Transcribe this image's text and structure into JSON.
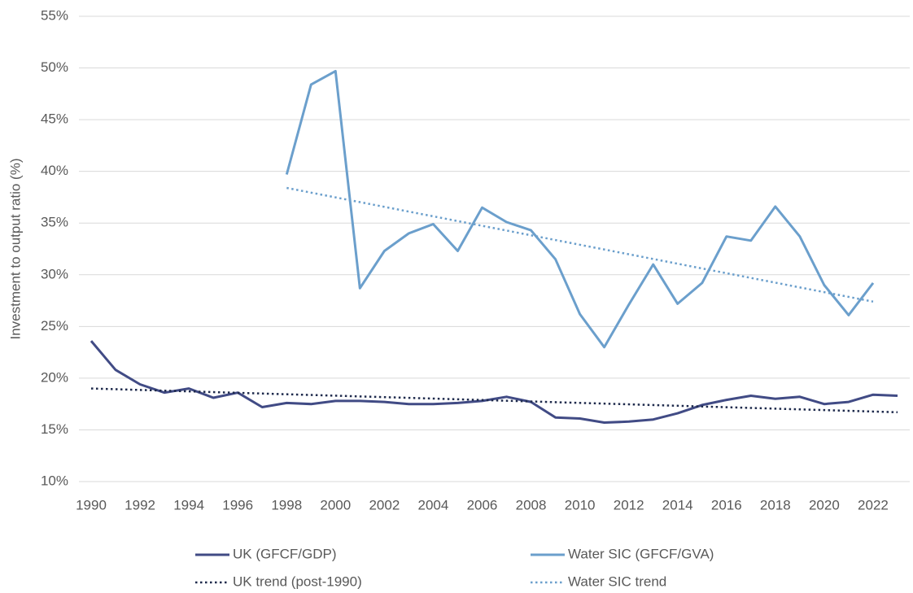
{
  "chart_data": {
    "type": "line",
    "y_label": "Investment to output ratio (%)",
    "xlim": [
      1989.5,
      2023.5
    ],
    "xticks": [
      1990,
      1992,
      1994,
      1996,
      1998,
      2000,
      2002,
      2004,
      2006,
      2008,
      2010,
      2012,
      2014,
      2016,
      2018,
      2020,
      2022
    ],
    "ylim": [
      10,
      55
    ],
    "yticks": [
      {
        "value": 10,
        "label": "10%"
      },
      {
        "value": 15,
        "label": "15%"
      },
      {
        "value": 20,
        "label": "20%"
      },
      {
        "value": 25,
        "label": "25%"
      },
      {
        "value": 30,
        "label": "30%"
      },
      {
        "value": 35,
        "label": "35%"
      },
      {
        "value": 40,
        "label": "40%"
      },
      {
        "value": 45,
        "label": "45%"
      },
      {
        "value": 50,
        "label": "50%"
      },
      {
        "value": 55,
        "label": "55%"
      }
    ],
    "grid": true,
    "legend_position": "bottom",
    "series": [
      {
        "name": "UK (GFCF/GDP)",
        "color": "#414b85",
        "dash": "solid",
        "x": [
          1990,
          1991,
          1992,
          1993,
          1994,
          1995,
          1996,
          1997,
          1998,
          1999,
          2000,
          2001,
          2002,
          2003,
          2004,
          2005,
          2006,
          2007,
          2008,
          2009,
          2010,
          2011,
          2012,
          2013,
          2014,
          2015,
          2016,
          2017,
          2018,
          2019,
          2020,
          2021,
          2022,
          2023
        ],
        "values": [
          23.6,
          20.8,
          19.4,
          18.6,
          19.0,
          18.1,
          18.6,
          17.2,
          17.6,
          17.5,
          17.8,
          17.8,
          17.7,
          17.5,
          17.5,
          17.6,
          17.8,
          18.2,
          17.7,
          16.2,
          16.1,
          15.7,
          15.8,
          16.0,
          16.6,
          17.4,
          17.9,
          18.3,
          18.0,
          18.2,
          17.5,
          17.7,
          18.4,
          18.3
        ]
      },
      {
        "name": "Water SIC (GFCF/GVA)",
        "color": "#6b9fcc",
        "dash": "solid",
        "x": [
          1998,
          1999,
          2000,
          2001,
          2002,
          2003,
          2004,
          2005,
          2006,
          2007,
          2008,
          2009,
          2010,
          2011,
          2012,
          2013,
          2014,
          2015,
          2016,
          2017,
          2018,
          2019,
          2020,
          2021,
          2022
        ],
        "values": [
          39.7,
          48.4,
          49.7,
          28.7,
          32.3,
          34.0,
          34.9,
          32.3,
          36.5,
          35.1,
          34.3,
          31.5,
          26.2,
          23.0,
          27.1,
          31.0,
          27.2,
          29.2,
          33.7,
          33.3,
          36.6,
          33.7,
          29.0,
          26.1,
          29.2
        ]
      },
      {
        "name": "UK trend (post-1990)",
        "color": "#1e2a4c",
        "dash": "dotted",
        "x": [
          1990,
          2023
        ],
        "values": [
          19.0,
          16.7
        ]
      },
      {
        "name": "Water SIC trend",
        "color": "#6b9fcc",
        "dash": "dotted",
        "x": [
          1998,
          2022
        ],
        "values": [
          38.4,
          27.4
        ]
      }
    ]
  }
}
